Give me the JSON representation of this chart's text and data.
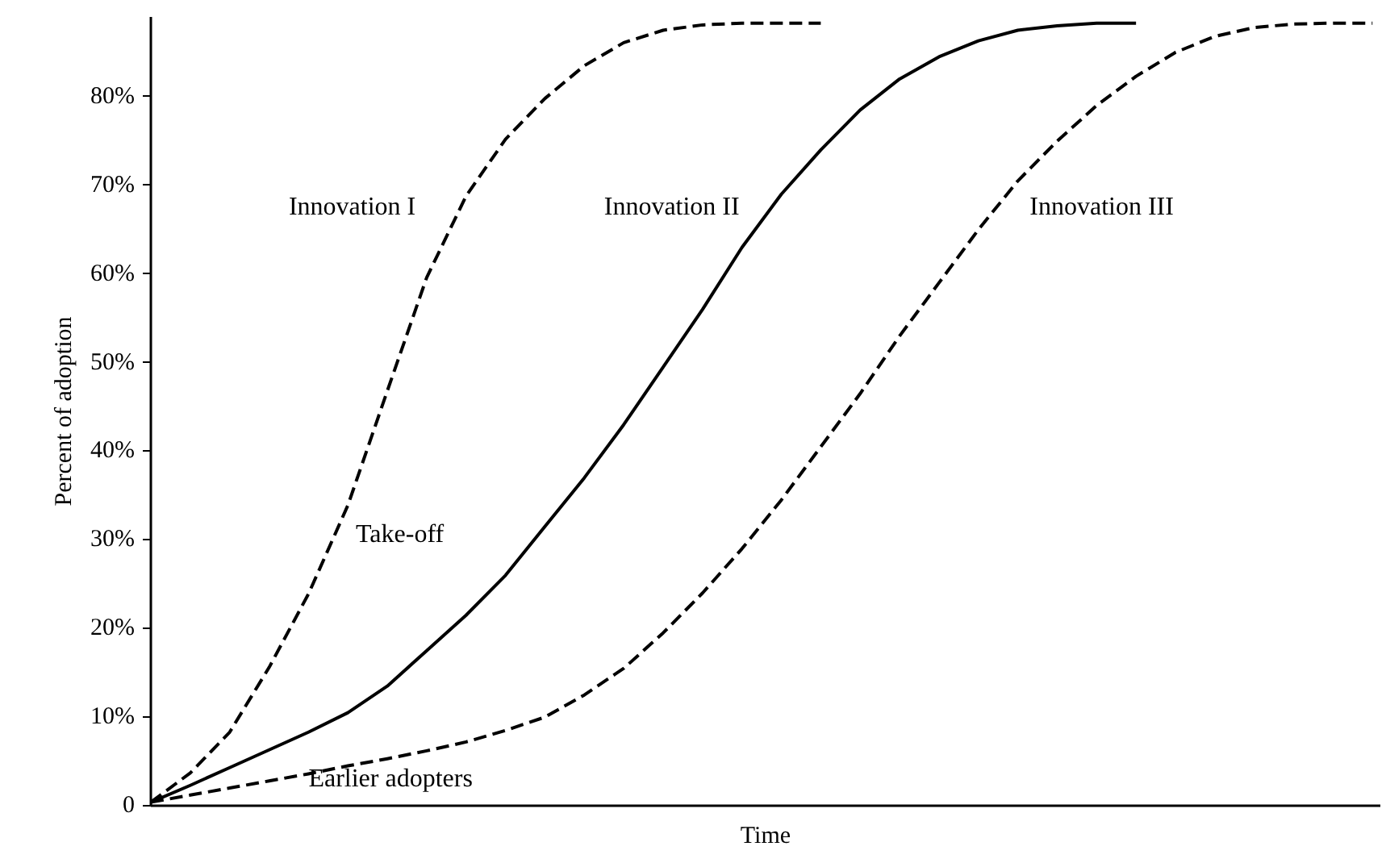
{
  "chart_data": {
    "type": "line",
    "ylabel": "Percent of adoption",
    "xlabel": "Time",
    "categories": [
      null,
      null,
      null,
      null,
      null,
      null,
      null,
      null,
      null,
      null,
      null,
      null,
      null,
      null,
      null,
      null,
      null,
      null,
      null,
      null,
      null,
      null,
      null,
      null,
      null,
      null,
      null,
      null,
      null,
      null,
      null,
      null
    ],
    "series": [
      {
        "name": "Innovation I",
        "color": "#000000",
        "line_style": "dashed",
        "values": [
          0.4,
          3.7,
          8.3,
          15.6,
          23.9,
          33.9,
          46.8,
          59.6,
          68.8,
          75.2,
          79.8,
          83.5,
          86.1,
          87.5,
          88.1,
          88.3,
          88.3,
          88.3,
          null,
          null,
          null,
          null,
          null,
          null,
          null,
          null,
          null,
          null,
          null,
          null,
          null,
          null
        ]
      },
      {
        "name": "Innovation II",
        "color": "#000000",
        "line_style": "solid",
        "values": [
          0.4,
          2.3,
          4.3,
          6.3,
          8.3,
          10.5,
          13.5,
          17.5,
          21.5,
          26,
          31.5,
          37,
          43,
          49.5,
          56,
          63,
          69,
          74,
          78.5,
          82,
          84.5,
          86.3,
          87.5,
          88,
          88.3,
          88.3,
          null,
          null,
          null,
          null,
          null,
          null
        ]
      },
      {
        "name": "Innovation III",
        "color": "#000000",
        "line_style": "dashed",
        "values": [
          0.4,
          1.2,
          2,
          2.8,
          3.6,
          4.5,
          5.3,
          6.2,
          7.2,
          8.5,
          10,
          12.5,
          15.5,
          19.5,
          24,
          29,
          34.5,
          40.5,
          46.5,
          53,
          59,
          65,
          70.5,
          75,
          79,
          82.3,
          85,
          86.8,
          87.8,
          88.2,
          88.3,
          88.3
        ]
      }
    ],
    "annotations": [
      "Take-off",
      "Earlier adopters"
    ],
    "ylim": [
      0,
      89
    ],
    "yticks": [
      0,
      {
        "value": 10,
        "label": "10%"
      },
      {
        "value": 20,
        "label": "20%"
      },
      {
        "value": 30,
        "label": "30%"
      },
      {
        "value": 40,
        "label": "40%"
      },
      {
        "value": 50,
        "label": "50%"
      },
      {
        "value": 60,
        "label": "60%"
      },
      {
        "value": 70,
        "label": "70%"
      },
      {
        "value": 80,
        "label": "80%"
      }
    ],
    "tick_labels": "y",
    "grid": false,
    "marker": "none"
  }
}
